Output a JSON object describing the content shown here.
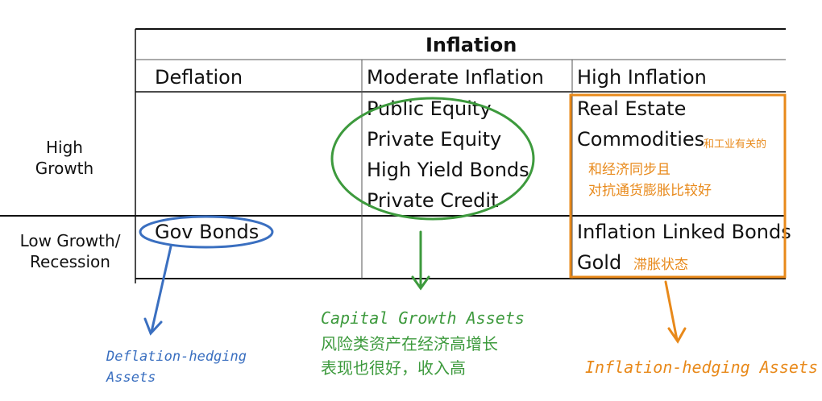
{
  "table": {
    "header": "Inflation",
    "columns": [
      "Deflation",
      "Moderate Inflation",
      "High Inflation"
    ],
    "rows": [
      {
        "label": "High\nGrowth",
        "deflation": [],
        "moderate": [
          "Public Equity",
          "Private Equity",
          "High Yield Bonds",
          "Private Credit"
        ],
        "high": [
          "Real Estate",
          "Commodities"
        ]
      },
      {
        "label": "Low Growth/\nRecession",
        "deflation": [
          "Gov Bonds"
        ],
        "moderate": [],
        "high": [
          "Inflation Linked Bonds",
          "Gold"
        ]
      }
    ]
  },
  "annotations": {
    "commodities_note": "和工业有关的",
    "high_growth_note": [
      "和经济同步且",
      "对抗通货膨胀比较好"
    ],
    "gold_note": "滞胀状态",
    "capital_title": "Capital Growth Assets",
    "capital_cn": [
      "风险类资产在经济高增长",
      "表现也很好，收入高"
    ],
    "deflation_title": [
      "Deflation-hedging",
      "Assets"
    ],
    "inflation_title": "Inflation-hedging Assets"
  },
  "colors": {
    "green": "#3d9a3d",
    "blue": "#3a6fc0",
    "orange": "#e8891a"
  }
}
